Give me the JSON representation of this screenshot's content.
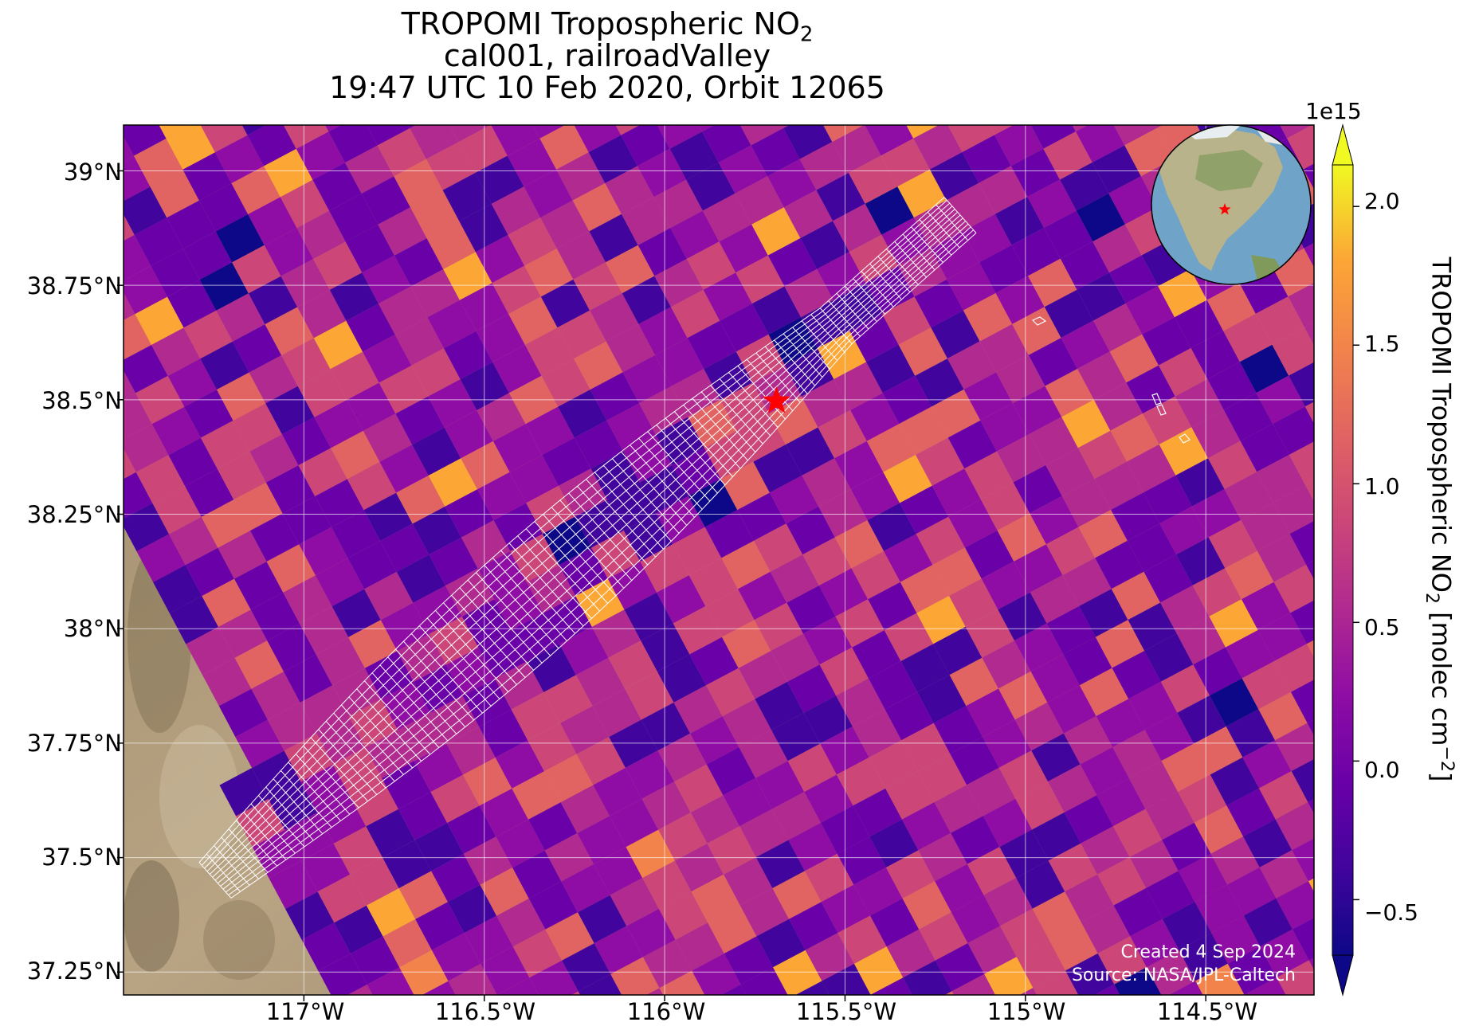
{
  "title": {
    "line1_main": "TROPOMI Tropospheric NO",
    "line1_sub": "2",
    "line2": "cal001, railroadValley",
    "line3": "19:47 UTC 10 Feb 2020, Orbit 12065"
  },
  "map": {
    "lon_range": [
      -117.5,
      -114.2
    ],
    "lat_range": [
      37.2,
      39.1
    ],
    "lat_ticks": [
      "39°N",
      "38.75°N",
      "38.5°N",
      "38.25°N",
      "38°N",
      "37.75°N",
      "37.5°N",
      "37.25°N"
    ],
    "lon_ticks": [
      "117°W",
      "116.5°W",
      "116°W",
      "115.5°W",
      "115°W",
      "114.5°W"
    ],
    "site_marker": {
      "lon": -115.69,
      "lat": 38.497,
      "color": "#ff0000",
      "shape": "star"
    },
    "grid": true,
    "background": "satellite imagery (desert terrain)",
    "overlay": "white outline grid of footprint pixels along flight track"
  },
  "colorbar": {
    "colormap": "plasma",
    "range": [
      -0.7,
      2.15
    ],
    "exponent_label": "1e15",
    "ticks": [
      "2.0",
      "1.5",
      "1.0",
      "0.5",
      "0.0",
      "−0.5"
    ],
    "label_main": "TROPOMI Tropospheric NO",
    "label_sub": "2",
    "label_units_pre": " [molec cm",
    "label_units_sup": "−2",
    "label_units_post": "]",
    "extend": "both"
  },
  "inset_globe": {
    "description": "Globe centered on North America with red star at site",
    "marker_color": "#ff0000"
  },
  "credits": {
    "created": "Created 4 Sep 2024",
    "source": "Source: NASA/JPL-Caltech"
  }
}
